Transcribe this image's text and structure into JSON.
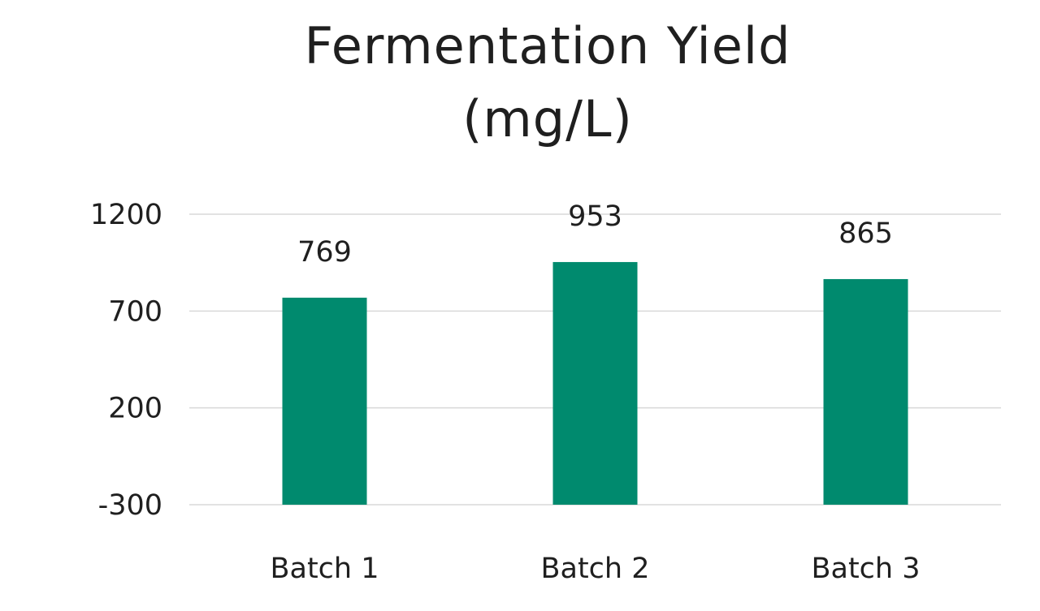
{
  "chart_data": {
    "type": "bar",
    "title_lines": [
      "Fermentation Yield",
      "(mg/L)"
    ],
    "xlabel": "",
    "ylabel": "",
    "categories": [
      "Batch 1",
      "Batch 2",
      "Batch 3"
    ],
    "values": [
      769,
      953,
      865
    ],
    "data_labels": [
      "769",
      "953",
      "865"
    ],
    "ylim": [
      -300,
      1200
    ],
    "yticks": [
      -300,
      200,
      700,
      1200
    ],
    "ytick_labels": [
      "-300",
      "200",
      "700",
      "1200"
    ],
    "grid": true,
    "legend": "none",
    "bar_color": "#008a6e",
    "grid_color": "#d9d9d9"
  }
}
